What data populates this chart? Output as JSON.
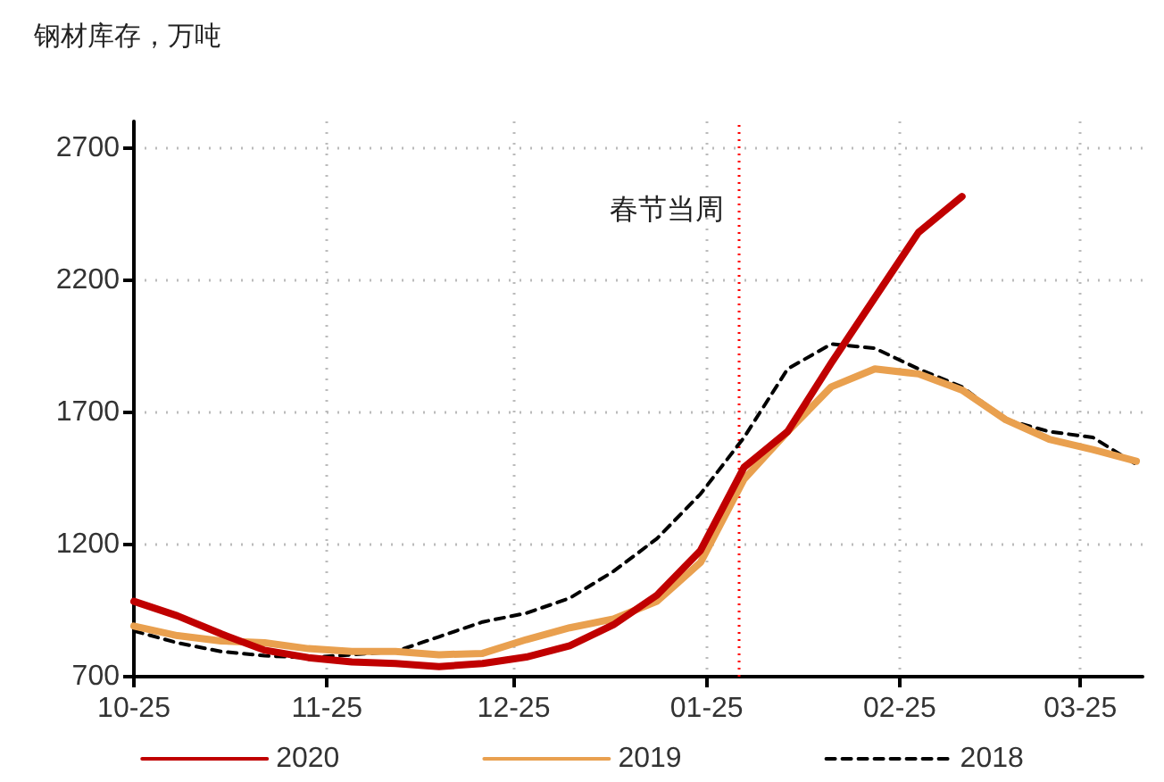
{
  "chart_data": {
    "type": "line",
    "title": "钢材库存，万吨",
    "x": [
      "2019-10-25",
      "2019-11-01",
      "2019-11-08",
      "2019-11-15",
      "2019-11-22",
      "2019-11-29",
      "2019-12-06",
      "2019-12-13",
      "2019-12-20",
      "2019-12-27",
      "2020-01-03",
      "2020-01-10",
      "2020-01-17",
      "2020-01-24",
      "2020-01-31",
      "2020-02-07",
      "2020-02-14",
      "2020-02-21",
      "2020-02-28",
      "2020-03-06",
      "2020-03-13",
      "2020-03-20",
      "2020-03-27",
      "2020-04-03"
    ],
    "series": [
      {
        "name": "2020",
        "color": "#c00000",
        "line_style": "solid",
        "values": [
          985,
          930,
          862,
          800,
          772,
          756,
          750,
          738,
          750,
          774,
          817,
          896,
          1008,
          1177,
          1492,
          1627,
          1886,
          2133,
          2380,
          2516,
          null,
          null,
          null,
          null
        ]
      },
      {
        "name": "2019",
        "color": "#e9a04f",
        "line_style": "solid",
        "values": [
          891,
          855,
          835,
          828,
          806,
          795,
          795,
          783,
          788,
          840,
          885,
          918,
          985,
          1132,
          1447,
          1627,
          1796,
          1864,
          1845,
          1784,
          1672,
          1598,
          1559,
          1515
        ]
      },
      {
        "name": "2018",
        "color": "#000000",
        "line_style": "dashed",
        "values": [
          873,
          828,
          795,
          779,
          772,
          783,
          795,
          851,
          907,
          940,
          997,
          1098,
          1222,
          1391,
          1605,
          1864,
          1958,
          1942,
          1864,
          1796,
          1672,
          1627,
          1605,
          1503
        ]
      }
    ],
    "xlim": [
      "2019-10-25",
      "2020-04-04"
    ],
    "xticks": [
      {
        "value": "2019-10-25",
        "label": "10-25"
      },
      {
        "value": "2019-11-25",
        "label": "11-25"
      },
      {
        "value": "2019-12-25",
        "label": "12-25"
      },
      {
        "value": "2020-01-25",
        "label": "01-25"
      },
      {
        "value": "2020-02-25",
        "label": "02-25"
      },
      {
        "value": "2020-03-25",
        "label": "03-25"
      }
    ],
    "ylim": [
      700,
      2800
    ],
    "yticks": [
      700,
      1200,
      1700,
      2200,
      2700
    ],
    "ref_lines": [
      {
        "axis": "x",
        "value": "2020-01-30",
        "label": "春节当周",
        "color": "#ff0000",
        "line_style": "dotted"
      }
    ],
    "grid": true,
    "legend": "bottom",
    "marker": "none"
  }
}
